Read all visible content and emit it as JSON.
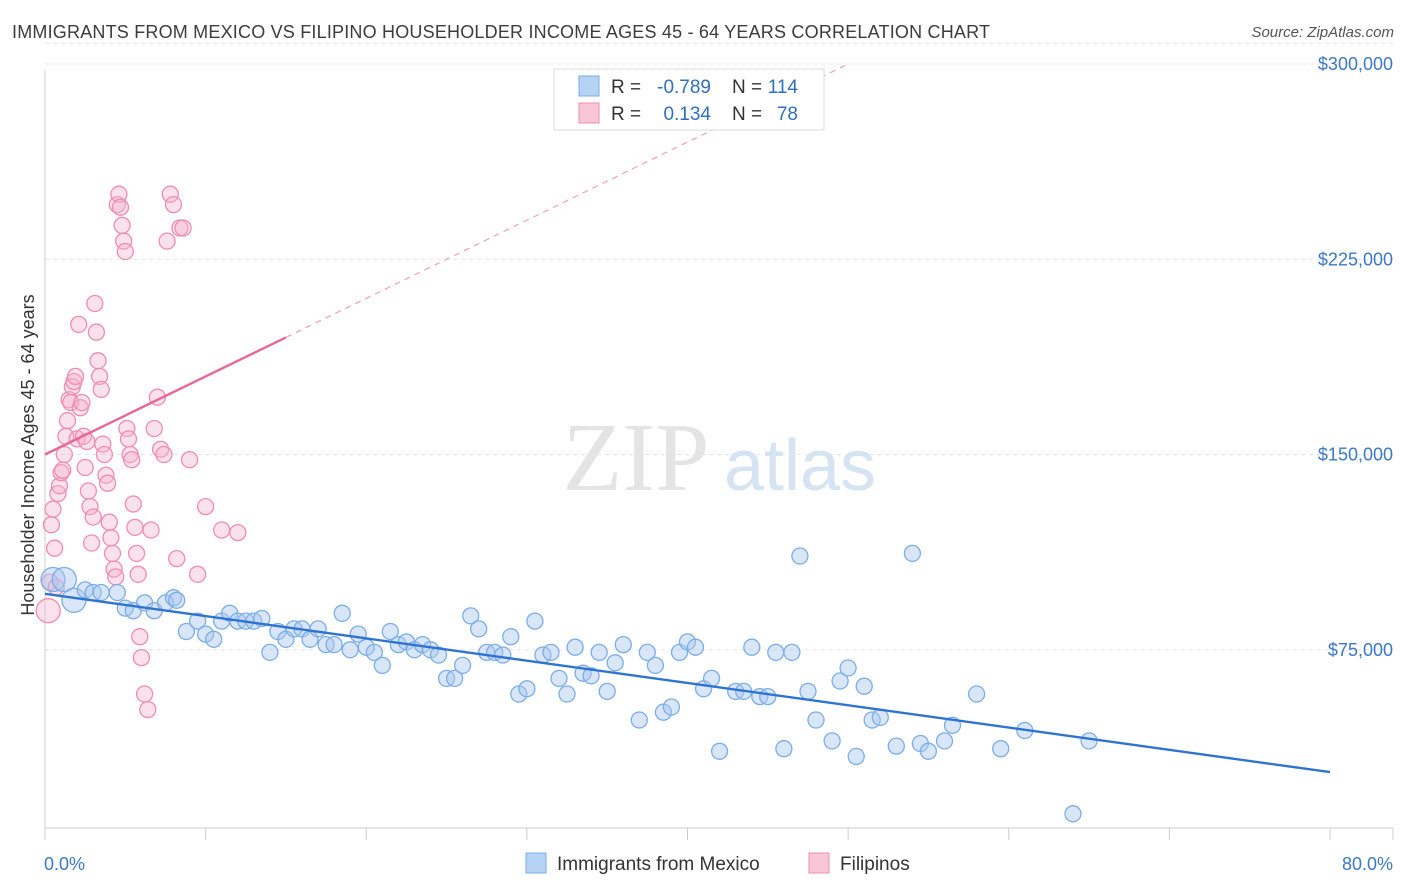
{
  "title": "IMMIGRANTS FROM MEXICO VS FILIPINO HOUSEHOLDER INCOME AGES 45 - 64 YEARS CORRELATION CHART",
  "source": "Source: ZipAtlas.com",
  "watermark": {
    "zip": "ZIP",
    "atlas": "atlas"
  },
  "legend": {
    "rows": [
      {
        "r_label": "R =",
        "r_value": "-0.789",
        "n_label": "N =",
        "n_value": "114",
        "color": "#7aaee8"
      },
      {
        "r_label": "R =",
        "r_value": "0.134",
        "n_label": "N =",
        "n_value": "78",
        "color": "#f08cb0"
      }
    ]
  },
  "bottom_legend": {
    "items": [
      {
        "label": "Immigrants from Mexico",
        "color": "#7aaee8"
      },
      {
        "label": "Filipinos",
        "color": "#f08cb0"
      }
    ]
  },
  "chart_data": {
    "type": "scatter",
    "title": "IMMIGRANTS FROM MEXICO VS FILIPINO HOUSEHOLDER INCOME AGES 45 - 64 YEARS CORRELATION CHART",
    "xlabel": "",
    "ylabel": "Householder Income Ages 45 - 64 years",
    "xlim": [
      0,
      80
    ],
    "ylim": [
      0,
      310000
    ],
    "x_tick_labels": [
      "0.0%",
      "80.0%"
    ],
    "y_ticks": [
      75000,
      150000,
      225000,
      300000
    ],
    "y_tick_labels": [
      "$75,000",
      "$150,000",
      "$225,000",
      "$300,000"
    ],
    "grid": true,
    "legend_position": "top-center",
    "series": [
      {
        "name": "Immigrants from Mexico",
        "color": "#7aaee8",
        "points": [
          [
            0.5,
            102000
          ],
          [
            1.2,
            102000
          ],
          [
            1.8,
            94000
          ],
          [
            2.5,
            98000
          ],
          [
            3.0,
            97000
          ],
          [
            3.5,
            97000
          ],
          [
            4.5,
            97000
          ],
          [
            5.0,
            91000
          ],
          [
            5.5,
            90000
          ],
          [
            6.2,
            93000
          ],
          [
            6.8,
            90000
          ],
          [
            7.5,
            93000
          ],
          [
            8.0,
            95000
          ],
          [
            8.2,
            94000
          ],
          [
            8.8,
            82000
          ],
          [
            9.5,
            86000
          ],
          [
            10.0,
            81000
          ],
          [
            10.5,
            79000
          ],
          [
            11.0,
            86000
          ],
          [
            11.5,
            89000
          ],
          [
            12.0,
            86000
          ],
          [
            12.5,
            86000
          ],
          [
            13.0,
            86000
          ],
          [
            13.5,
            87000
          ],
          [
            14.0,
            74000
          ],
          [
            14.5,
            82000
          ],
          [
            15.0,
            79000
          ],
          [
            15.5,
            83000
          ],
          [
            16.0,
            83000
          ],
          [
            16.5,
            79000
          ],
          [
            17.0,
            83000
          ],
          [
            17.5,
            77000
          ],
          [
            18.0,
            77000
          ],
          [
            18.5,
            89000
          ],
          [
            19.0,
            75000
          ],
          [
            19.5,
            81000
          ],
          [
            20.0,
            76000
          ],
          [
            20.5,
            74000
          ],
          [
            21.0,
            69000
          ],
          [
            21.5,
            82000
          ],
          [
            22.0,
            77000
          ],
          [
            22.5,
            78000
          ],
          [
            23.0,
            75000
          ],
          [
            23.5,
            77000
          ],
          [
            24.0,
            75000
          ],
          [
            24.5,
            73000
          ],
          [
            25.0,
            64000
          ],
          [
            25.5,
            64000
          ],
          [
            26.0,
            69000
          ],
          [
            26.5,
            88000
          ],
          [
            27.0,
            83000
          ],
          [
            27.5,
            74000
          ],
          [
            28.0,
            74000
          ],
          [
            28.5,
            73000
          ],
          [
            29.0,
            80000
          ],
          [
            29.5,
            58000
          ],
          [
            30.0,
            60000
          ],
          [
            30.5,
            86000
          ],
          [
            31.0,
            73000
          ],
          [
            31.5,
            74000
          ],
          [
            32.0,
            64000
          ],
          [
            32.5,
            58000
          ],
          [
            33.0,
            76000
          ],
          [
            33.5,
            66000
          ],
          [
            34.0,
            65000
          ],
          [
            34.5,
            74000
          ],
          [
            35.0,
            59000
          ],
          [
            35.5,
            70000
          ],
          [
            36.0,
            77000
          ],
          [
            37.0,
            48000
          ],
          [
            37.5,
            74000
          ],
          [
            38.0,
            69000
          ],
          [
            38.5,
            51000
          ],
          [
            39.0,
            53000
          ],
          [
            39.5,
            74000
          ],
          [
            40.0,
            78000
          ],
          [
            40.5,
            76000
          ],
          [
            41.0,
            60000
          ],
          [
            41.5,
            64000
          ],
          [
            42.0,
            36000
          ],
          [
            43.0,
            59000
          ],
          [
            43.5,
            59000
          ],
          [
            44.0,
            76000
          ],
          [
            44.5,
            57000
          ],
          [
            45.0,
            57000
          ],
          [
            45.5,
            74000
          ],
          [
            46.0,
            37000
          ],
          [
            46.5,
            74000
          ],
          [
            47.0,
            111000
          ],
          [
            47.5,
            59000
          ],
          [
            48.0,
            48000
          ],
          [
            49.0,
            40000
          ],
          [
            49.5,
            63000
          ],
          [
            50.0,
            68000
          ],
          [
            50.5,
            34000
          ],
          [
            51.0,
            61000
          ],
          [
            51.5,
            48000
          ],
          [
            52.0,
            49000
          ],
          [
            53.0,
            38000
          ],
          [
            54.0,
            112000
          ],
          [
            54.5,
            39000
          ],
          [
            55.0,
            36000
          ],
          [
            56.0,
            40000
          ],
          [
            56.5,
            46000
          ],
          [
            58.0,
            58000
          ],
          [
            59.5,
            37000
          ],
          [
            61.0,
            44000
          ],
          [
            64.0,
            12000
          ],
          [
            65.0,
            40000
          ]
        ]
      },
      {
        "name": "Filipinos",
        "color": "#f08cb0",
        "points": [
          [
            0.2,
            90000
          ],
          [
            0.3,
            101000
          ],
          [
            0.4,
            123000
          ],
          [
            0.5,
            129000
          ],
          [
            0.6,
            114000
          ],
          [
            0.7,
            99000
          ],
          [
            0.8,
            135000
          ],
          [
            0.9,
            138000
          ],
          [
            1.0,
            143000
          ],
          [
            1.1,
            144000
          ],
          [
            1.2,
            150000
          ],
          [
            1.3,
            157000
          ],
          [
            1.4,
            163000
          ],
          [
            1.5,
            171000
          ],
          [
            1.6,
            170000
          ],
          [
            1.7,
            176000
          ],
          [
            1.8,
            178000
          ],
          [
            1.9,
            180000
          ],
          [
            2.0,
            156000
          ],
          [
            2.1,
            200000
          ],
          [
            2.2,
            168000
          ],
          [
            2.3,
            170000
          ],
          [
            2.4,
            157000
          ],
          [
            2.5,
            145000
          ],
          [
            2.6,
            155000
          ],
          [
            2.7,
            136000
          ],
          [
            2.8,
            130000
          ],
          [
            2.9,
            116000
          ],
          [
            3.0,
            126000
          ],
          [
            3.1,
            208000
          ],
          [
            3.2,
            197000
          ],
          [
            3.3,
            186000
          ],
          [
            3.4,
            180000
          ],
          [
            3.5,
            175000
          ],
          [
            3.6,
            154000
          ],
          [
            3.7,
            150000
          ],
          [
            3.8,
            142000
          ],
          [
            3.9,
            139000
          ],
          [
            4.0,
            124000
          ],
          [
            4.1,
            118000
          ],
          [
            4.2,
            112000
          ],
          [
            4.3,
            106000
          ],
          [
            4.4,
            103000
          ],
          [
            4.5,
            246000
          ],
          [
            4.6,
            250000
          ],
          [
            4.7,
            245000
          ],
          [
            4.8,
            238000
          ],
          [
            4.9,
            232000
          ],
          [
            5.0,
            228000
          ],
          [
            5.1,
            160000
          ],
          [
            5.2,
            156000
          ],
          [
            5.3,
            150000
          ],
          [
            5.4,
            148000
          ],
          [
            5.5,
            131000
          ],
          [
            5.6,
            122000
          ],
          [
            5.7,
            112000
          ],
          [
            5.8,
            104000
          ],
          [
            5.9,
            80000
          ],
          [
            6.0,
            72000
          ],
          [
            6.2,
            58000
          ],
          [
            6.4,
            52000
          ],
          [
            6.6,
            121000
          ],
          [
            6.8,
            160000
          ],
          [
            7.0,
            172000
          ],
          [
            7.2,
            152000
          ],
          [
            7.4,
            150000
          ],
          [
            7.6,
            232000
          ],
          [
            7.8,
            250000
          ],
          [
            8.0,
            246000
          ],
          [
            8.2,
            110000
          ],
          [
            8.4,
            237000
          ],
          [
            8.6,
            237000
          ],
          [
            9.0,
            148000
          ],
          [
            9.5,
            104000
          ],
          [
            10.0,
            130000
          ],
          [
            11.0,
            121000
          ],
          [
            12.0,
            120000
          ]
        ]
      }
    ],
    "trend_lines": [
      {
        "series": "Immigrants from Mexico",
        "color": "#2f73d0",
        "x": [
          0,
          80
        ],
        "y": [
          96500,
          28000
        ],
        "style": "solid"
      },
      {
        "series": "Filipinos",
        "color": "#e8679a",
        "x": [
          0,
          15
        ],
        "y": [
          150000,
          195000
        ],
        "style": "solid"
      },
      {
        "series": "Filipinos",
        "color": "#f0a0bc",
        "x": [
          15,
          50
        ],
        "y": [
          195000,
          300000
        ],
        "style": "dashed"
      }
    ]
  }
}
